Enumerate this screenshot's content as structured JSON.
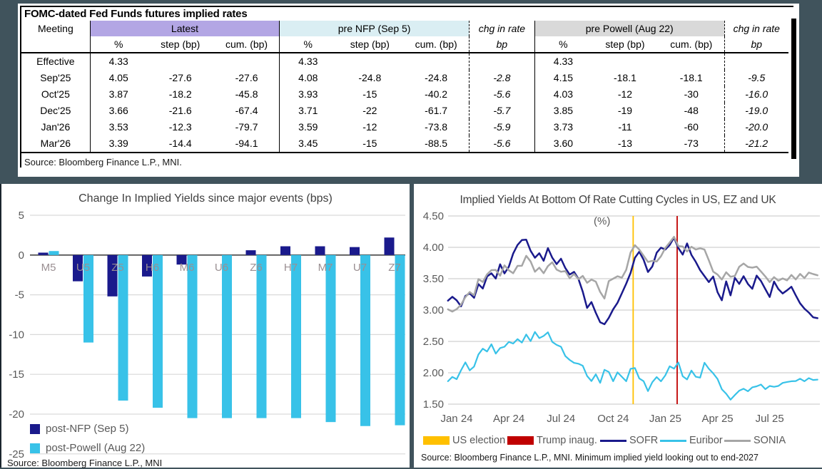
{
  "table": {
    "title": "FOMC-dated Fed Funds futures implied rates",
    "col_meeting": "Meeting",
    "groups": [
      {
        "label": "Latest",
        "bg": "#b3a6e4"
      },
      {
        "label": "pre NFP (Sep 5)",
        "bg": "#daeef3"
      },
      {
        "label": "pre Powell (Aug 22)",
        "bg": "#d9d9d9"
      }
    ],
    "chg_header": "chg in rate",
    "chg_sub": "bp",
    "subheaders": [
      "%",
      "step (bp)",
      "cum. (bp)"
    ],
    "rows": [
      [
        "Effective",
        "4.33",
        "",
        "",
        "4.33",
        "",
        "",
        "",
        "4.33",
        "",
        "",
        ""
      ],
      [
        "Sep'25",
        "4.05",
        "-27.6",
        "-27.6",
        "4.08",
        "-24.8",
        "-24.8",
        "-2.8",
        "4.15",
        "-18.1",
        "-18.1",
        "-9.5"
      ],
      [
        "Oct'25",
        "3.87",
        "-18.2",
        "-45.8",
        "3.93",
        "-15",
        "-40.2",
        "-5.6",
        "4.03",
        "-12",
        "-30",
        "-16.0"
      ],
      [
        "Dec'25",
        "3.66",
        "-21.6",
        "-67.4",
        "3.71",
        "-22",
        "-61.7",
        "-5.7",
        "3.85",
        "-19",
        "-48",
        "-19.0"
      ],
      [
        "Jan'26",
        "3.53",
        "-12.3",
        "-79.7",
        "3.59",
        "-12",
        "-73.8",
        "-5.9",
        "3.73",
        "-11",
        "-60",
        "-20.0"
      ],
      [
        "Mar'26",
        "3.39",
        "-14.4",
        "-94.1",
        "3.45",
        "-15",
        "-88.5",
        "-5.6",
        "3.60",
        "-13",
        "-73",
        "-21.2"
      ]
    ],
    "source": "Source: Bloomberg Finance L.P., MNI."
  },
  "chart_data": [
    {
      "type": "bar",
      "title": "Change In Implied Yields since major events (bps)",
      "categories": [
        "M5",
        "U5",
        "Z5",
        "H6",
        "M6",
        "U6",
        "Z6",
        "H7",
        "M7",
        "U7",
        "Z7"
      ],
      "series": [
        {
          "name": "post-NFP (Sep 5)",
          "color": "#1a1a8c",
          "values": [
            0.3,
            -3.3,
            -5.2,
            -2.7,
            -1.2,
            0.0,
            0.6,
            1.1,
            1.1,
            1.0,
            2.2
          ]
        },
        {
          "name": "post-Powell (Aug 22)",
          "color": "#38c2e8",
          "values": [
            0.5,
            -11.0,
            -18.3,
            -19.2,
            -20.5,
            -20.5,
            -20.5,
            -20.5,
            -21.0,
            -21.5,
            -21.4
          ]
        }
      ],
      "ylim": [
        -25,
        5
      ],
      "yticks": [
        5,
        0,
        -5,
        -10,
        -15,
        -20,
        -25
      ],
      "grid": true,
      "legend_position": "bottom-left",
      "source": "Source: Bloomberg Finance L.P., MNI"
    },
    {
      "type": "line",
      "title": "Implied Yields At Bottom Of Rate Cutting Cycles in US, EZ and UK",
      "unit_label": "(%)",
      "ylim": [
        1.5,
        4.5
      ],
      "yticks": [
        "4.50",
        "4.00",
        "3.50",
        "3.00",
        "2.50",
        "2.00",
        "1.50"
      ],
      "xticks": [
        {
          "m": 0,
          "label": "Jan 24"
        },
        {
          "m": 3,
          "label": "Apr 24"
        },
        {
          "m": 6,
          "label": "Jul 24"
        },
        {
          "m": 9,
          "label": "Oct 24"
        },
        {
          "m": 12,
          "label": "Jan 25"
        },
        {
          "m": 15,
          "label": "Apr 25"
        },
        {
          "m": 18,
          "label": "Jul 25"
        }
      ],
      "event_lines": [
        {
          "name": "US election",
          "month": 10.15,
          "color": "#ffc000"
        },
        {
          "name": "Trump inaug.",
          "month": 12.68,
          "color": "#c00000"
        }
      ],
      "x_start": -0.5,
      "x_step": 0.25,
      "series": [
        {
          "name": "SOFR",
          "color": "#1a1a8c",
          "values": [
            3.15,
            3.2,
            3.17,
            3.05,
            3.22,
            3.28,
            3.18,
            3.42,
            3.35,
            3.52,
            3.6,
            3.5,
            3.72,
            3.6,
            3.68,
            3.9,
            4.05,
            4.1,
            4.13,
            3.95,
            3.82,
            3.92,
            3.78,
            3.98,
            3.85,
            3.72,
            3.82,
            3.68,
            3.55,
            3.62,
            3.5,
            3.28,
            3.05,
            3.12,
            2.95,
            2.82,
            2.76,
            2.88,
            3.02,
            3.1,
            3.28,
            3.42,
            3.58,
            3.85,
            3.92,
            3.8,
            3.62,
            3.68,
            3.92,
            4.0,
            3.95,
            4.05,
            4.15,
            3.98,
            3.9,
            4.05,
            3.88,
            3.78,
            3.62,
            3.55,
            3.45,
            3.52,
            3.3,
            3.15,
            3.45,
            3.25,
            3.5,
            3.42,
            3.55,
            3.4,
            3.35,
            3.55,
            3.45,
            3.35,
            3.2,
            3.45,
            3.35,
            3.25,
            3.32,
            3.38,
            3.22,
            3.12,
            3.02,
            2.95,
            2.9,
            2.86
          ]
        },
        {
          "name": "Euribor",
          "color": "#38c2e8",
          "values": [
            1.88,
            1.92,
            1.9,
            2.05,
            2.15,
            2.05,
            2.1,
            2.28,
            2.4,
            2.33,
            2.45,
            2.32,
            2.38,
            2.42,
            2.5,
            2.45,
            2.55,
            2.48,
            2.6,
            2.52,
            2.64,
            2.55,
            2.6,
            2.63,
            2.5,
            2.45,
            2.4,
            2.28,
            2.2,
            2.15,
            2.16,
            2.1,
            1.95,
            1.88,
            1.96,
            1.85,
            2.05,
            2.0,
            1.88,
            2.0,
            1.93,
            1.88,
            2.05,
            2.08,
            1.92,
            1.85,
            1.72,
            1.85,
            1.92,
            1.88,
            1.95,
            2.1,
            2.08,
            2.15,
            1.95,
            1.9,
            2.02,
            1.95,
            1.92,
            2.15,
            2.08,
            1.98,
            1.9,
            1.75,
            1.65,
            1.58,
            1.65,
            1.7,
            1.76,
            1.7,
            1.76,
            1.8,
            1.8,
            1.74,
            1.8,
            1.76,
            1.8,
            1.84,
            1.84,
            1.88,
            1.86,
            1.9,
            1.88,
            1.9,
            1.89,
            1.9
          ]
        },
        {
          "name": "SONIA",
          "color": "#a6a6a6",
          "values": [
            3.02,
            2.98,
            3.0,
            3.1,
            3.2,
            3.28,
            3.25,
            3.48,
            3.45,
            3.58,
            3.62,
            3.65,
            3.55,
            3.7,
            3.65,
            3.58,
            3.7,
            3.72,
            3.85,
            3.78,
            3.62,
            3.66,
            3.6,
            3.7,
            3.75,
            3.66,
            3.6,
            3.62,
            3.52,
            3.56,
            3.5,
            3.55,
            3.42,
            3.5,
            3.45,
            3.28,
            3.2,
            3.45,
            3.5,
            3.55,
            3.5,
            3.65,
            3.92,
            4.02,
            3.98,
            3.86,
            3.76,
            3.8,
            3.76,
            3.86,
            4.0,
            4.06,
            4.18,
            4.02,
            4.0,
            3.95,
            4.0,
            3.96,
            4.0,
            3.95,
            3.8,
            3.62,
            3.55,
            3.5,
            3.6,
            3.52,
            3.56,
            3.68,
            3.74,
            3.7,
            3.66,
            3.7,
            3.62,
            3.52,
            3.46,
            3.52,
            3.46,
            3.52,
            3.46,
            3.56,
            3.5,
            3.56,
            3.52,
            3.6,
            3.56,
            3.57
          ]
        }
      ],
      "source": "Source: Bloomberg Finance L.P., MNI. Minimum implied yield looking out to end-2027"
    }
  ]
}
